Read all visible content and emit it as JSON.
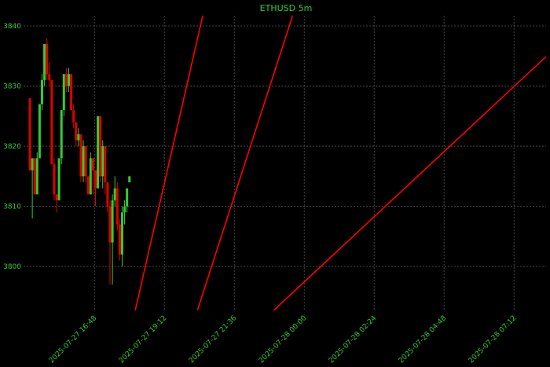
{
  "chart_data": {
    "type": "candlestick",
    "title": "ETHUSD 5m",
    "up_color": "#33cc33",
    "down_color": "#dd0000",
    "grid": true,
    "x": [
      "2025-07-27 14:35",
      "2025-07-27 14:40",
      "2025-07-27 14:45",
      "2025-07-27 14:50",
      "2025-07-27 14:55",
      "2025-07-27 15:00",
      "2025-07-27 15:05",
      "2025-07-27 15:10",
      "2025-07-27 15:15",
      "2025-07-27 15:20",
      "2025-07-27 15:25",
      "2025-07-27 15:30",
      "2025-07-27 15:35",
      "2025-07-27 15:40",
      "2025-07-27 15:45",
      "2025-07-27 15:50",
      "2025-07-27 15:55",
      "2025-07-27 16:00",
      "2025-07-27 16:05",
      "2025-07-27 16:10",
      "2025-07-27 16:15",
      "2025-07-27 16:20",
      "2025-07-27 16:25",
      "2025-07-27 16:30",
      "2025-07-27 16:35",
      "2025-07-27 16:40",
      "2025-07-27 16:45",
      "2025-07-27 16:50",
      "2025-07-27 16:55",
      "2025-07-27 17:00",
      "2025-07-27 17:05",
      "2025-07-27 17:10",
      "2025-07-27 17:15",
      "2025-07-27 17:20",
      "2025-07-27 17:25",
      "2025-07-27 17:30",
      "2025-07-27 17:35",
      "2025-07-27 17:40",
      "2025-07-27 17:45",
      "2025-07-27 17:50",
      "2025-07-27 17:55",
      "2025-07-27 18:00"
    ],
    "open": [
      3828,
      3816,
      3818,
      3812,
      3818,
      3827,
      3831,
      3837,
      3832,
      3831,
      3817,
      3812,
      3811,
      3818,
      3826,
      3832,
      3830,
      3832,
      3826,
      3824,
      3821,
      3822,
      3815,
      3820,
      3815,
      3812,
      3818,
      3816,
      3813,
      3825,
      3815,
      3820,
      3814,
      3810,
      3804,
      3811,
      3813,
      3807,
      3802,
      3809,
      3810,
      3814
    ],
    "high": [
      3828,
      3818,
      3818,
      3819,
      3827,
      3832,
      3837,
      3838,
      3834,
      3831,
      3818,
      3812,
      3818,
      3826,
      3832,
      3833,
      3833,
      3832,
      3827,
      3824,
      3823,
      3822,
      3821,
      3820,
      3815,
      3819,
      3818,
      3816,
      3825,
      3825,
      3821,
      3820,
      3814,
      3811,
      3812,
      3815,
      3814,
      3808,
      3810,
      3811,
      3813,
      3815
    ],
    "low": [
      3816,
      3808,
      3812,
      3812,
      3818,
      3826,
      3830,
      3831,
      3830,
      3817,
      3811,
      3809,
      3811,
      3817,
      3825,
      3829,
      3829,
      3826,
      3823,
      3820,
      3820,
      3814,
      3814,
      3814,
      3812,
      3812,
      3812,
      3810,
      3813,
      3814,
      3813,
      3812,
      3809,
      3797,
      3797,
      3810,
      3806,
      3801,
      3800,
      3807,
      3809,
      3814
    ],
    "close": [
      3816,
      3818,
      3812,
      3818,
      3827,
      3831,
      3837,
      3832,
      3831,
      3817,
      3812,
      3811,
      3818,
      3826,
      3832,
      3830,
      3832,
      3826,
      3824,
      3821,
      3822,
      3815,
      3820,
      3815,
      3812,
      3818,
      3816,
      3813,
      3825,
      3815,
      3820,
      3814,
      3810,
      3804,
      3811,
      3813,
      3807,
      3802,
      3809,
      3810,
      3813,
      3815
    ],
    "lines": [
      {
        "color": "#ff0000",
        "x": [
          "2025-07-27 18:12",
          "2025-07-27 20:31"
        ],
        "y": [
          3792.7,
          3841.7
        ]
      },
      {
        "color": "#ff0000",
        "x": [
          "2025-07-27 20:20",
          "2025-07-27 23:36"
        ],
        "y": [
          3792.7,
          3841.7
        ]
      },
      {
        "color": "#ff0000",
        "x": [
          "2025-07-27 22:57",
          "2025-07-28 08:18"
        ],
        "y": [
          3792.7,
          3834.9
        ]
      }
    ],
    "xlim": [
      "2025-07-27 14:22",
      "2025-07-28 08:18"
    ],
    "xticks": [
      "2025-07-27 16:48",
      "2025-07-27 19:12",
      "2025-07-27 21:36",
      "2025-07-28 00:00",
      "2025-07-28 02:24",
      "2025-07-28 04:48",
      "2025-07-28 07:12"
    ],
    "ylim": [
      3792.7,
      3841.7
    ],
    "yticks": [
      3800,
      3810,
      3820,
      3830,
      3840
    ]
  }
}
